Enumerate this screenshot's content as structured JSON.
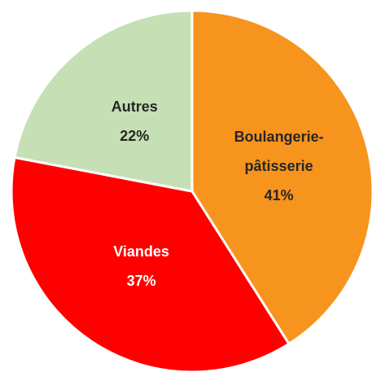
{
  "chart_data": {
    "type": "pie",
    "categories": [
      "Boulangerie-pâtisserie",
      "Viandes",
      "Autres"
    ],
    "values": [
      41,
      37,
      22
    ],
    "value_labels": [
      "41%",
      "37%",
      "22%"
    ],
    "colors": [
      "#f7941d",
      "#ff0000",
      "#c5e0b4"
    ]
  }
}
